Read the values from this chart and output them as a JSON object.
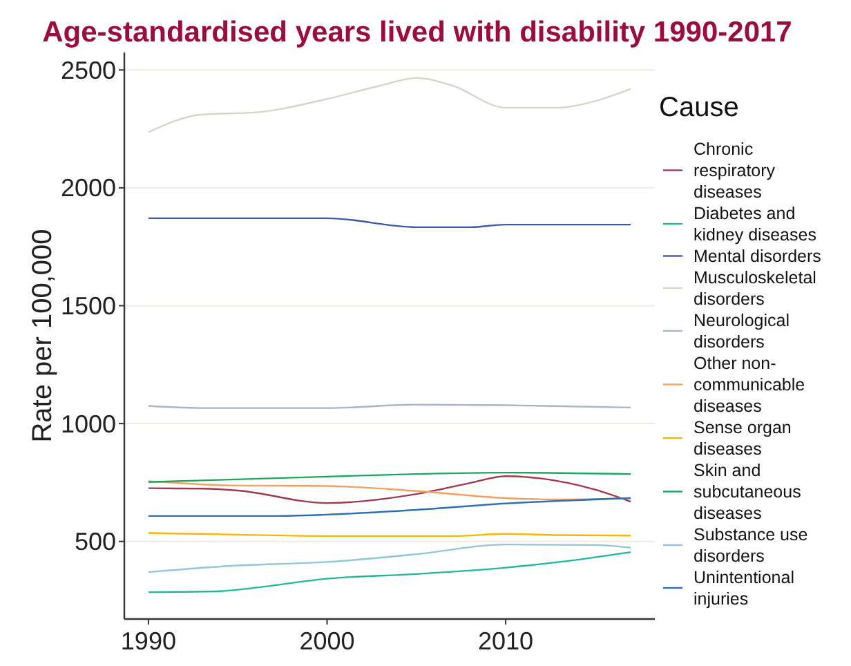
{
  "chart_data": {
    "type": "line",
    "title": "Age-standardised years lived with disability 1990-2017",
    "ylabel": "Rate per 100,000",
    "legend_title": "Cause",
    "legend": "right",
    "grid": "y",
    "xlim": [
      1988.65,
      2018.35
    ],
    "xticks": [
      1990,
      2000,
      2010
    ],
    "ylim": [
      171,
      2574
    ],
    "yticks": [
      500,
      1000,
      1500,
      2000,
      2500
    ],
    "series": [
      {
        "name": "Chronic respiratory diseases",
        "color": "#a0394f",
        "x": [
          1990,
          1993,
          1995,
          2000,
          2005,
          2008,
          2010,
          2012,
          2015,
          2017
        ],
        "values": [
          726,
          724,
          716,
          663,
          701,
          748,
          777,
          767,
          720,
          669
        ]
      },
      {
        "name": "Diabetes and kidney diseases",
        "color": "#1fb89a",
        "x": [
          1990,
          1994,
          1996,
          2000,
          2005,
          2010,
          2013,
          2017
        ],
        "values": [
          285,
          289,
          304,
          342,
          362,
          389,
          413,
          455
        ]
      },
      {
        "name": "Mental disorders",
        "color": "#3a5ca8",
        "x": [
          1990,
          1995,
          2000,
          2005,
          2008,
          2010,
          2017
        ],
        "values": [
          1871,
          1871,
          1871,
          1833,
          1833,
          1844,
          1844
        ]
      },
      {
        "name": "Musculoskeletal disorders",
        "color": "#d8d4c8",
        "x": [
          1990,
          1993,
          1996,
          2000,
          2003,
          2005,
          2007,
          2010,
          2013,
          2015,
          2017
        ],
        "values": [
          2236,
          2311,
          2320,
          2377,
          2434,
          2466,
          2434,
          2340,
          2340,
          2368,
          2420
        ]
      },
      {
        "name": "Neurological disorders",
        "color": "#a9b4c8",
        "x": [
          1990,
          1993,
          2000,
          2005,
          2010,
          2017
        ],
        "values": [
          1075,
          1066,
          1066,
          1080,
          1078,
          1068
        ]
      },
      {
        "name": "Other non-communicable diseases",
        "color": "#f0a060",
        "x": [
          1990,
          1995,
          2000,
          2005,
          2010,
          2013,
          2017
        ],
        "values": [
          756,
          737,
          735,
          714,
          684,
          678,
          684
        ]
      },
      {
        "name": "Sense organ diseases",
        "color": "#f5b800",
        "x": [
          1990,
          1995,
          2000,
          2007,
          2010,
          2013,
          2017
        ],
        "values": [
          536,
          529,
          523,
          523,
          532,
          527,
          525
        ]
      },
      {
        "name": "Skin and subcutaneous diseases",
        "color": "#1aa860",
        "x": [
          1990,
          2000,
          2005,
          2010,
          2017
        ],
        "values": [
          752,
          775,
          786,
          792,
          786
        ]
      },
      {
        "name": "Substance use disorders",
        "color": "#8ec8d8",
        "x": [
          1990,
          1995,
          2000,
          2005,
          2010,
          2015,
          2017
        ],
        "values": [
          370,
          398,
          413,
          446,
          487,
          485,
          474
        ]
      },
      {
        "name": "Unintentional injuries",
        "color": "#3070b0",
        "x": [
          1990,
          1997,
          2000,
          2005,
          2010,
          2017
        ],
        "values": [
          608,
          608,
          614,
          634,
          661,
          684
        ]
      }
    ]
  }
}
